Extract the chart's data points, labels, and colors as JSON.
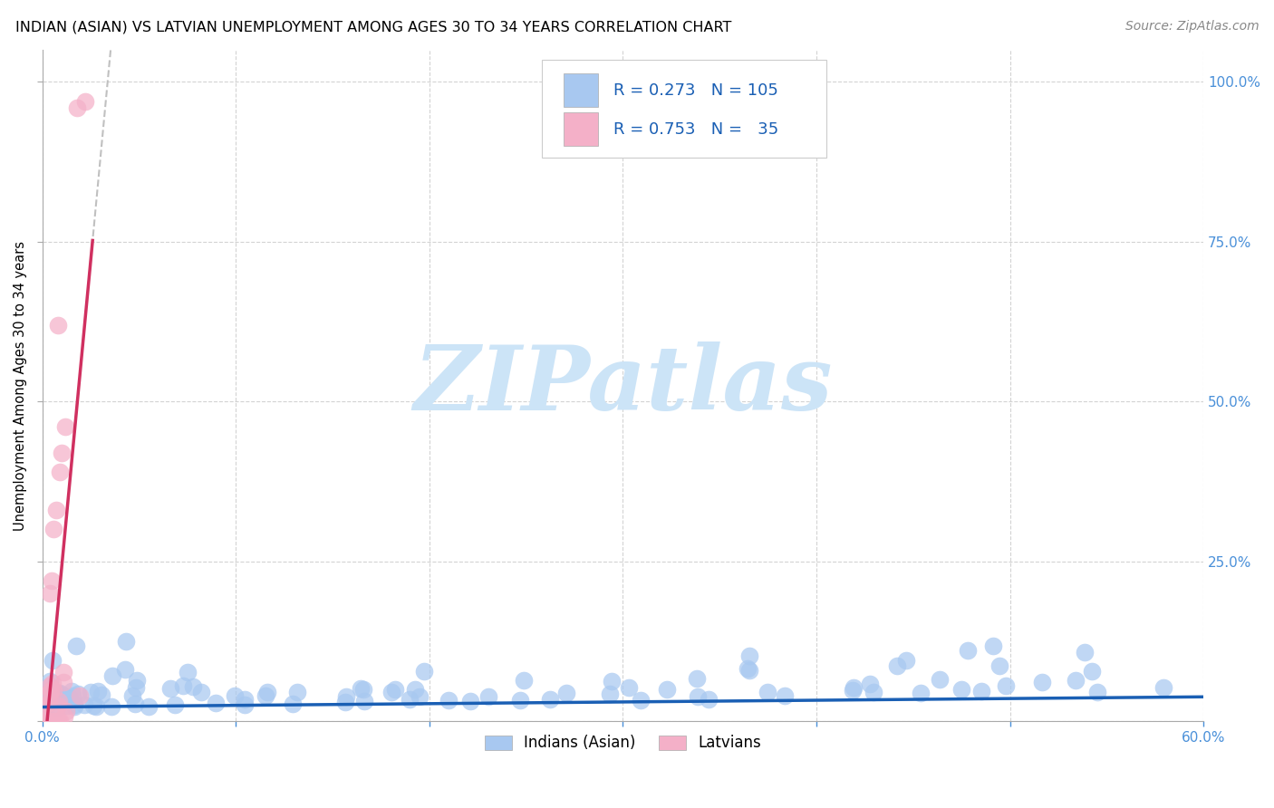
{
  "title": "INDIAN (ASIAN) VS LATVIAN UNEMPLOYMENT AMONG AGES 30 TO 34 YEARS CORRELATION CHART",
  "source": "Source: ZipAtlas.com",
  "ylabel": "Unemployment Among Ages 30 to 34 years",
  "xlim": [
    0.0,
    0.6
  ],
  "ylim": [
    0.0,
    1.05
  ],
  "xticks": [
    0.0,
    0.1,
    0.2,
    0.3,
    0.4,
    0.5,
    0.6
  ],
  "yticks": [
    0.0,
    0.25,
    0.5,
    0.75,
    1.0
  ],
  "yticklabels_right": [
    "",
    "25.0%",
    "50.0%",
    "75.0%",
    "100.0%"
  ],
  "xticklabels": [
    "0.0%",
    "",
    "",
    "",
    "",
    "",
    "60.0%"
  ],
  "indian_R": 0.273,
  "indian_N": 105,
  "latvian_R": 0.753,
  "latvian_N": 35,
  "indian_scatter_color": "#a8c8f0",
  "latvian_scatter_color": "#f4b0c8",
  "indian_line_color": "#1a5fb4",
  "latvian_line_color": "#d03060",
  "dashed_line_color": "#c0c0c0",
  "watermark_text": "ZIPatlas",
  "watermark_color": "#cce4f7",
  "tick_color": "#4a90d9",
  "grid_color": "#cccccc",
  "title_fontsize": 11.5,
  "axis_label_fontsize": 10.5,
  "tick_fontsize": 11,
  "legend_stat_fontsize": 13,
  "legend_label_fontsize": 12,
  "source_fontsize": 10,
  "seed": 99
}
